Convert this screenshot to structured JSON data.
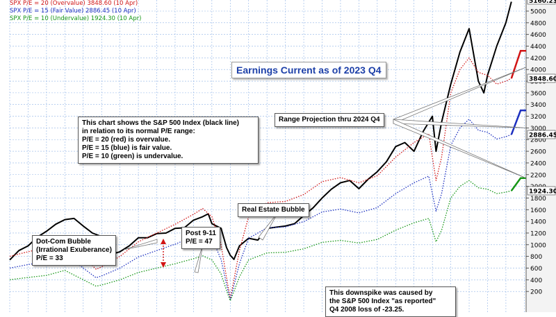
{
  "chart_data": {
    "type": "line",
    "headline": "Earnings Current as of 2023 Q4",
    "legend": [
      {
        "label": "SPX P/E = 20 (Overvalue) 3848.60 (10 Apr)",
        "color": "#d11414"
      },
      {
        "label": "SPX P/E = 15 (Fair Value) 2886.45 (10 Apr)",
        "color": "#1c2fbf"
      },
      {
        "label": "SPX P/E = 10 (Undervalue) 1924.30 (10 Apr)",
        "color": "#159615"
      }
    ],
    "y_ticks": [
      "5000",
      "4800",
      "4600",
      "4400",
      "4200",
      "4000",
      "3800",
      "3600",
      "3400",
      "3200",
      "3000",
      "2800",
      "2600",
      "2400",
      "2200",
      "2000",
      "1800",
      "1600",
      "1400",
      "1200",
      "1000",
      "800",
      "600",
      "400",
      "200"
    ],
    "ylim": [
      0,
      5300
    ],
    "end_labels": [
      {
        "text": "3848.60",
        "value": 3848.6,
        "color": "#d11414"
      },
      {
        "text": "2886.45",
        "value": 2886.45,
        "color": "#1c2fbf"
      },
      {
        "text": "1924.30",
        "value": 1924.3,
        "color": "#159615"
      }
    ],
    "top_right_label": "5160.23",
    "series": [
      {
        "name": "S&P 500 Index",
        "color": "#000000",
        "style": "solid",
        "x": [
          1997.0,
          1997.5,
          1998.0,
          1998.5,
          1999.0,
          1999.5,
          2000.0,
          2000.5,
          2001.0,
          2001.5,
          2002.0,
          2002.5,
          2002.8,
          2003.0,
          2003.5,
          2004.0,
          2004.5,
          2005.0,
          2005.5,
          2006.0,
          2006.5,
          2007.0,
          2007.5,
          2007.8,
          2008.0,
          2008.5,
          2008.8,
          2009.0,
          2009.2,
          2009.5,
          2010.0,
          2010.5,
          2011.0,
          2011.5,
          2012.0,
          2012.5,
          2013.0,
          2013.5,
          2014.0,
          2014.5,
          2015.0,
          2015.5,
          2016.0,
          2016.5,
          2017.0,
          2017.5,
          2018.0,
          2018.5,
          2019.0,
          2019.5,
          2020.0,
          2020.2,
          2020.5,
          2021.0,
          2021.5,
          2022.0,
          2022.5,
          2022.8,
          2023.0,
          2023.5,
          2024.0,
          2024.3
        ],
        "y": [
          740,
          900,
          980,
          1130,
          1230,
          1350,
          1430,
          1450,
          1320,
          1200,
          1140,
          960,
          860,
          880,
          980,
          1120,
          1120,
          1190,
          1200,
          1280,
          1290,
          1420,
          1480,
          1530,
          1360,
          1280,
          950,
          820,
          750,
          980,
          1110,
          1080,
          1280,
          1300,
          1320,
          1360,
          1500,
          1630,
          1800,
          1950,
          2060,
          2100,
          1960,
          2120,
          2250,
          2420,
          2680,
          2750,
          2600,
          2940,
          3200,
          2600,
          3100,
          3750,
          4300,
          4700,
          3800,
          3600,
          3900,
          4400,
          4800,
          5160
        ]
      },
      {
        "name": "P/E = 20",
        "color": "#d11414",
        "style": "dotted",
        "x": [
          1997.0,
          1998.0,
          1999.0,
          2000.0,
          2001.0,
          2001.7,
          2002.0,
          2003.0,
          2004.0,
          2005.0,
          2006.0,
          2007.0,
          2007.5,
          2008.0,
          2008.5,
          2008.8,
          2009.0,
          2009.2,
          2009.5,
          2010.0,
          2011.0,
          2012.0,
          2013.0,
          2014.0,
          2015.0,
          2016.0,
          2017.0,
          2018.0,
          2019.0,
          2019.8,
          2020.2,
          2020.5,
          2021.0,
          2021.5,
          2022.0,
          2022.5,
          2023.0,
          2023.5,
          2024.0,
          2024.3
        ],
        "y": [
          800,
          880,
          950,
          1120,
          800,
          580,
          620,
          800,
          1050,
          1200,
          1350,
          1520,
          1620,
          1480,
          1000,
          430,
          80,
          400,
          900,
          1480,
          1720,
          1740,
          1860,
          2080,
          2150,
          2060,
          2180,
          2500,
          2750,
          2900,
          2100,
          2500,
          3600,
          4000,
          4200,
          3950,
          3900,
          3750,
          3800,
          3848.6
        ]
      },
      {
        "name": "P/E = 15",
        "color": "#1c2fbf",
        "style": "dotted",
        "x": [
          1997.0,
          1998.0,
          1999.0,
          2000.0,
          2001.0,
          2001.7,
          2002.0,
          2003.0,
          2004.0,
          2005.0,
          2006.0,
          2007.0,
          2007.5,
          2008.0,
          2008.5,
          2008.8,
          2009.0,
          2009.2,
          2009.5,
          2010.0,
          2011.0,
          2012.0,
          2013.0,
          2014.0,
          2015.0,
          2016.0,
          2017.0,
          2018.0,
          2019.0,
          2019.8,
          2020.2,
          2020.5,
          2021.0,
          2021.5,
          2022.0,
          2022.5,
          2023.0,
          2023.5,
          2024.0,
          2024.3
        ],
        "y": [
          600,
          660,
          710,
          840,
          600,
          435,
          465,
          600,
          790,
          900,
          1010,
          1140,
          1215,
          1110,
          750,
          320,
          60,
          300,
          675,
          1110,
          1290,
          1305,
          1395,
          1560,
          1610,
          1545,
          1635,
          1875,
          2060,
          2175,
          1575,
          1875,
          2700,
          3000,
          3150,
          2960,
          2925,
          2810,
          2850,
          2886.45
        ]
      },
      {
        "name": "P/E = 10",
        "color": "#159615",
        "style": "dotted",
        "x": [
          1997.0,
          1998.0,
          1999.0,
          2000.0,
          2001.0,
          2001.7,
          2002.0,
          2003.0,
          2004.0,
          2005.0,
          2006.0,
          2007.0,
          2007.5,
          2008.0,
          2008.5,
          2008.8,
          2009.0,
          2009.2,
          2009.5,
          2010.0,
          2011.0,
          2012.0,
          2013.0,
          2014.0,
          2015.0,
          2016.0,
          2017.0,
          2018.0,
          2019.0,
          2019.8,
          2020.2,
          2020.5,
          2021.0,
          2021.5,
          2022.0,
          2022.5,
          2023.0,
          2023.5,
          2024.0,
          2024.3
        ],
        "y": [
          400,
          440,
          475,
          560,
          400,
          290,
          310,
          400,
          525,
          600,
          675,
          760,
          810,
          740,
          500,
          215,
          40,
          200,
          450,
          740,
          860,
          870,
          930,
          1040,
          1075,
          1030,
          1090,
          1250,
          1375,
          1450,
          1050,
          1250,
          1800,
          2000,
          2100,
          1975,
          1950,
          1875,
          1900,
          1924.3
        ]
      }
    ],
    "projections": [
      {
        "color": "#d11414",
        "from": [
          2024.3,
          3848.6
        ],
        "to": [
          2024.8,
          4320
        ],
        "step_to": 2025.1
      },
      {
        "color": "#1c2fbf",
        "from": [
          2024.3,
          2886.45
        ],
        "to": [
          2024.8,
          3300
        ],
        "step_to": 2025.1
      },
      {
        "color": "#159615",
        "from": [
          2024.3,
          1924.3
        ],
        "to": [
          2024.8,
          2140
        ],
        "step_to": 2025.1
      }
    ],
    "xlim": [
      1997.0,
      2025.1
    ],
    "grid": true,
    "annotations": {
      "pe_range_note": "This chart shows the S&P 500 Index (black line)\nin relation to its normal P/E range:\nP/E = 20 (red) is overvalue.\nP/E = 15 (blue) is fair value.\nP/E = 10 (green) is undervalue.",
      "range_projection": "Range Projection thru 2024 Q4",
      "real_estate": "Real Estate Bubble",
      "post_911": "Post 9-11\nP/E = 47",
      "dot_com": "Dot-Com Bubble\n(Irrational Exuberance)\nP/E = 33",
      "downspike": "This downspike was caused by\nthe S&P 500 Index \"as reported\"\nQ4 2008 loss of -23.25."
    }
  }
}
